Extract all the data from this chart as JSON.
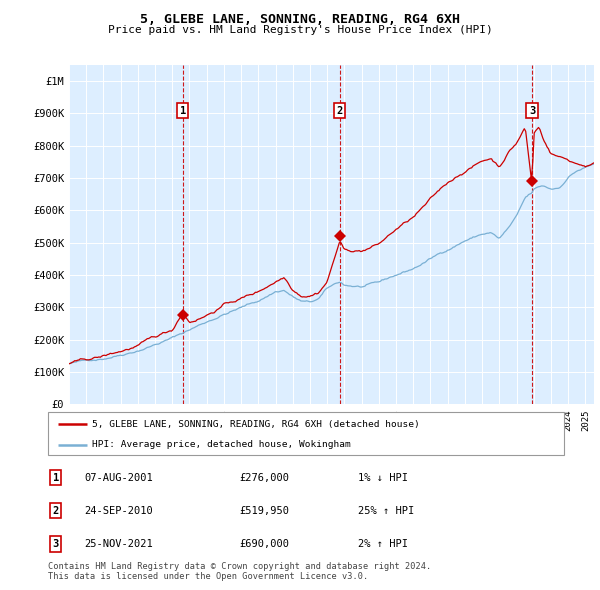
{
  "title": "5, GLEBE LANE, SONNING, READING, RG4 6XH",
  "subtitle": "Price paid vs. HM Land Registry's House Price Index (HPI)",
  "hpi_label": "HPI: Average price, detached house, Wokingham",
  "property_label": "5, GLEBE LANE, SONNING, READING, RG4 6XH (detached house)",
  "sale_dates": [
    "07-AUG-2001",
    "24-SEP-2010",
    "25-NOV-2021"
  ],
  "sale_prices": [
    276000,
    519950,
    690000
  ],
  "sale_pct": [
    "1%",
    "25%",
    "2%"
  ],
  "sale_dirs": [
    "↓",
    "↑",
    "↑"
  ],
  "sale_years": [
    2001.603,
    2010.729,
    2021.896
  ],
  "hpi_color": "#7ab0d4",
  "price_color": "#cc0000",
  "bg_color": "#ddeeff",
  "grid_color": "#ffffff",
  "ylim": [
    0,
    1050000
  ],
  "xlim_start": 1995.0,
  "xlim_end": 2025.5,
  "footer": "Contains HM Land Registry data © Crown copyright and database right 2024.\nThis data is licensed under the Open Government Licence v3.0.",
  "yticks": [
    0,
    100000,
    200000,
    300000,
    400000,
    500000,
    600000,
    700000,
    800000,
    900000,
    1000000
  ],
  "ytick_labels": [
    "£0",
    "£100K",
    "£200K",
    "£300K",
    "£400K",
    "£500K",
    "£600K",
    "£700K",
    "£800K",
    "£900K",
    "£1M"
  ],
  "hpi_knots_x": [
    1995.0,
    1996.0,
    1997.0,
    1998.0,
    1999.0,
    2000.0,
    2001.0,
    2001.6,
    2002.0,
    2003.0,
    2004.0,
    2005.0,
    2006.0,
    2007.0,
    2007.5,
    2008.0,
    2008.5,
    2009.0,
    2009.5,
    2010.0,
    2010.73,
    2011.0,
    2012.0,
    2013.0,
    2014.0,
    2015.0,
    2016.0,
    2017.0,
    2018.0,
    2019.0,
    2019.5,
    2020.0,
    2020.5,
    2021.0,
    2021.5,
    2021.9,
    2022.0,
    2022.5,
    2023.0,
    2023.5,
    2024.0,
    2024.5,
    2025.0,
    2025.5
  ],
  "hpi_knots_y": [
    125000,
    133000,
    143000,
    158000,
    175000,
    195000,
    215000,
    230000,
    240000,
    265000,
    290000,
    310000,
    330000,
    360000,
    365000,
    345000,
    330000,
    325000,
    335000,
    365000,
    385000,
    375000,
    370000,
    378000,
    400000,
    420000,
    450000,
    480000,
    510000,
    530000,
    535000,
    515000,
    545000,
    580000,
    635000,
    650000,
    660000,
    670000,
    660000,
    665000,
    700000,
    720000,
    730000,
    740000
  ],
  "price_knots_x": [
    1995.0,
    1996.0,
    1997.0,
    1998.0,
    1999.0,
    2000.0,
    2001.0,
    2001.6,
    2002.0,
    2003.0,
    2004.0,
    2005.0,
    2006.0,
    2007.0,
    2007.5,
    2008.0,
    2008.5,
    2009.0,
    2009.5,
    2010.0,
    2010.73,
    2011.0,
    2012.0,
    2013.0,
    2014.0,
    2015.0,
    2016.0,
    2017.0,
    2018.0,
    2019.0,
    2019.5,
    2020.0,
    2020.5,
    2021.0,
    2021.5,
    2021.9,
    2022.0,
    2022.3,
    2022.5,
    2023.0,
    2023.5,
    2024.0,
    2024.5,
    2025.0,
    2025.5
  ],
  "price_knots_y": [
    125000,
    133000,
    143000,
    158000,
    175000,
    196000,
    218000,
    276000,
    248000,
    272000,
    305000,
    325000,
    345000,
    380000,
    395000,
    360000,
    345000,
    348000,
    360000,
    395000,
    519950,
    490000,
    490000,
    510000,
    555000,
    590000,
    640000,
    690000,
    730000,
    760000,
    770000,
    745000,
    790000,
    820000,
    870000,
    690000,
    850000,
    870000,
    840000,
    790000,
    780000,
    770000,
    760000,
    755000,
    760000
  ]
}
